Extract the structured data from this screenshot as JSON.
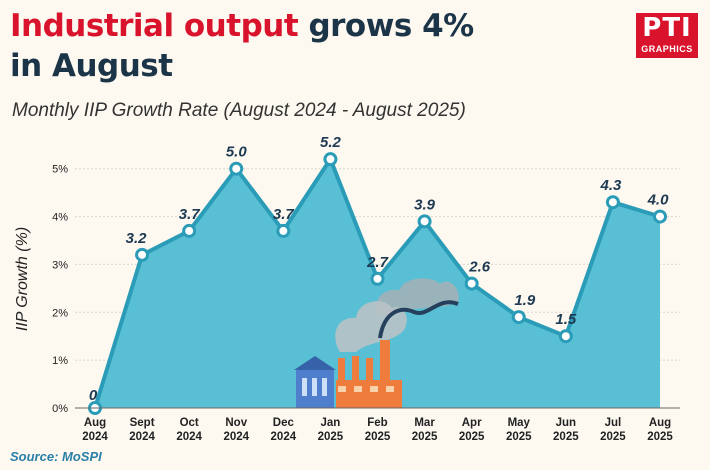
{
  "header": {
    "title_highlight": "Industrial output",
    "title_rest_line1": " grows 4%",
    "title_line2": "in August",
    "subtitle": "Monthly IIP Growth Rate (August 2024 - August 2025)"
  },
  "logo": {
    "text": "PTI",
    "subtext": "GRAPHICS"
  },
  "source": "Source: MoSPI",
  "colors": {
    "area": "#58bfd4",
    "line": "#2b9cb7",
    "title_accent": "#d8132b",
    "title": "#1c3448"
  },
  "chart_data": {
    "type": "area",
    "title": "Monthly IIP Growth Rate (August 2024 - August 2025)",
    "xlabel": "",
    "ylabel": "IIP Growth (%)",
    "ylim": [
      0,
      5.6
    ],
    "yticks": [
      0,
      1,
      2,
      3,
      4,
      5
    ],
    "ytick_labels": [
      "0%",
      "1%",
      "2%",
      "3%",
      "4%",
      "5%"
    ],
    "categories": [
      [
        "Aug",
        "2024"
      ],
      [
        "Sept",
        "2024"
      ],
      [
        "Oct",
        "2024"
      ],
      [
        "Nov",
        "2024"
      ],
      [
        "Dec",
        "2024"
      ],
      [
        "Jan",
        "2025"
      ],
      [
        "Feb",
        "2025"
      ],
      [
        "Mar",
        "2025"
      ],
      [
        "Apr",
        "2025"
      ],
      [
        "May",
        "2025"
      ],
      [
        "Jun",
        "2025"
      ],
      [
        "Jul",
        "2025"
      ],
      [
        "Aug",
        "2025"
      ]
    ],
    "values": [
      0,
      3.2,
      3.7,
      5.0,
      3.7,
      5.2,
      2.7,
      3.9,
      2.6,
      1.9,
      1.5,
      4.3,
      4.0
    ],
    "value_labels": [
      "0",
      "3.2",
      "3.7",
      "5.0",
      "3.7",
      "5.2",
      "2.7",
      "3.9",
      "2.6",
      "1.9",
      "1.5",
      "4.3",
      "4.0"
    ]
  }
}
